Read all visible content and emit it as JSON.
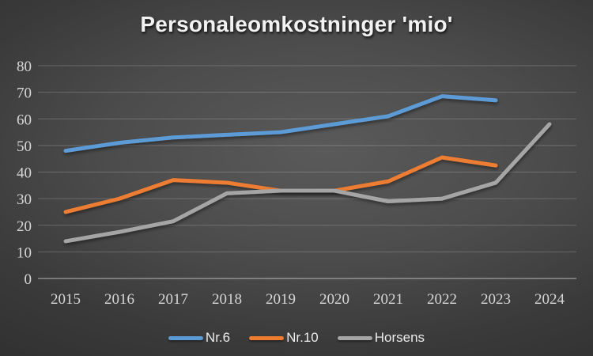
{
  "chart_data": {
    "type": "line",
    "title": "Personaleomkostninger 'mio'",
    "categories": [
      "2015",
      "2016",
      "2017",
      "2018",
      "2019",
      "2020",
      "2021",
      "2022",
      "2023",
      "2024"
    ],
    "series": [
      {
        "name": "Nr.6",
        "color": "#5B9BD5",
        "values": [
          48,
          51,
          53,
          54,
          55,
          58,
          61,
          68.5,
          67,
          null
        ]
      },
      {
        "name": "Nr.10",
        "color": "#ED7D31",
        "values": [
          25,
          30,
          37,
          36,
          33,
          33,
          36.5,
          45.5,
          42.5,
          null
        ]
      },
      {
        "name": "Horsens",
        "color": "#A5A5A5",
        "values": [
          14,
          17.5,
          21.5,
          32,
          33,
          33,
          29,
          30,
          36,
          58
        ]
      }
    ],
    "ylim": [
      0,
      80
    ],
    "yticks": [
      0,
      10,
      20,
      30,
      40,
      50,
      60,
      70,
      80
    ],
    "grid": true,
    "legend_position": "bottom"
  }
}
